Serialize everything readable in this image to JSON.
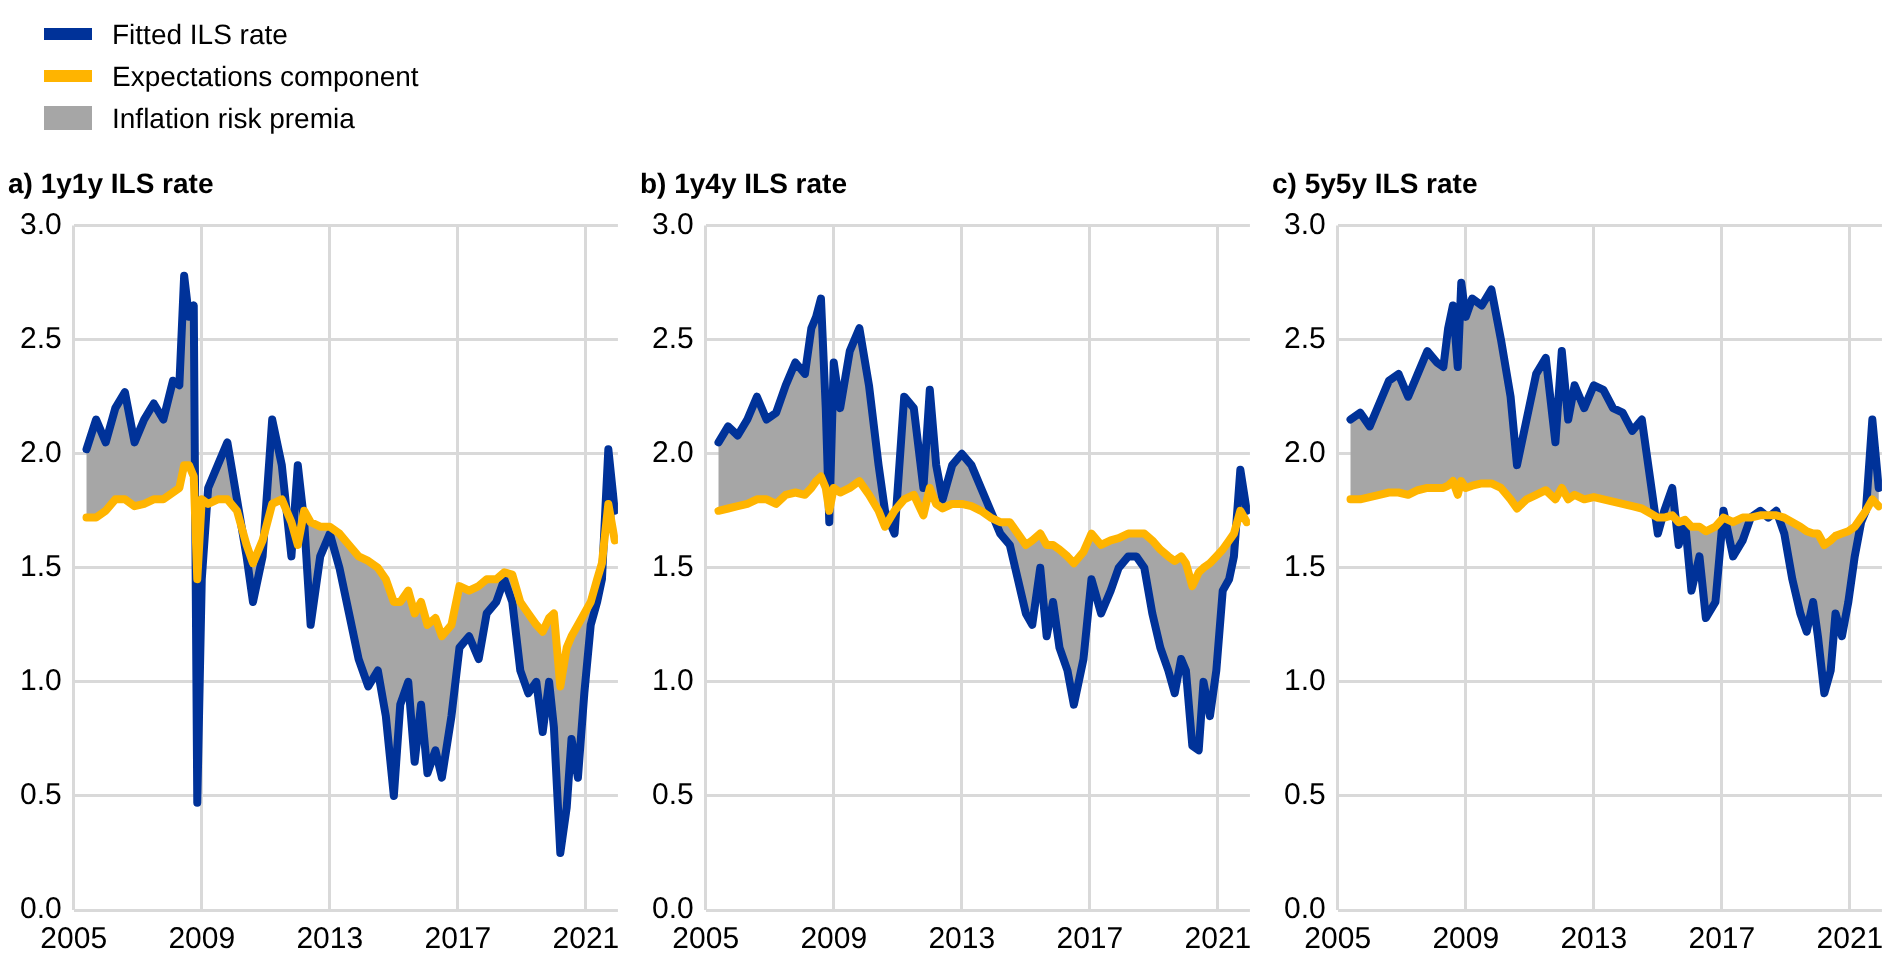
{
  "chart_data": [
    {
      "type": "line",
      "title": "a) 1y1y ILS rate",
      "legend": "top left",
      "annotations": [
        "Inflation risk premia"
      ],
      "grid": true,
      "xlim": [
        2005,
        2022
      ],
      "xticks": [
        2005,
        2009,
        2013,
        2017,
        2021
      ],
      "ylim": [
        0,
        3
      ],
      "yticks": [
        {
          "value": 0,
          "label": "0.0"
        },
        {
          "value": 0.5,
          "label": "0.5"
        },
        {
          "value": 1,
          "label": "1.0"
        },
        {
          "value": 1.5,
          "label": "1.5"
        },
        {
          "value": 2,
          "label": "2.0"
        },
        {
          "value": 2.5,
          "label": "2.5"
        },
        {
          "value": 3,
          "label": "3.0"
        }
      ],
      "x": [
        2005.4,
        2005.7,
        2006.0,
        2006.3,
        2006.6,
        2006.9,
        2007.2,
        2007.5,
        2007.8,
        2008.1,
        2008.3,
        2008.45,
        2008.6,
        2008.75,
        2008.86,
        2009.0,
        2009.2,
        2009.5,
        2009.8,
        2010.1,
        2010.4,
        2010.6,
        2010.9,
        2011.2,
        2011.5,
        2011.8,
        2012.0,
        2012.2,
        2012.4,
        2012.7,
        2013.0,
        2013.3,
        2013.6,
        2013.9,
        2014.2,
        2014.5,
        2014.75,
        2015.0,
        2015.2,
        2015.45,
        2015.65,
        2015.85,
        2016.05,
        2016.3,
        2016.5,
        2016.8,
        2017.05,
        2017.35,
        2017.65,
        2017.9,
        2018.2,
        2018.45,
        2018.7,
        2018.95,
        2019.2,
        2019.45,
        2019.65,
        2019.85,
        2020.0,
        2020.2,
        2020.4,
        2020.55,
        2020.75,
        2020.95,
        2021.15,
        2021.35,
        2021.5,
        2021.7,
        2021.9
      ],
      "series": [
        {
          "name": "Fitted ILS rate",
          "type": "line",
          "color": "#003299",
          "values": [
            2.02,
            2.15,
            2.05,
            2.2,
            2.27,
            2.05,
            2.15,
            2.22,
            2.15,
            2.32,
            2.3,
            2.78,
            2.6,
            2.65,
            0.47,
            1.45,
            1.85,
            1.95,
            2.05,
            1.8,
            1.55,
            1.35,
            1.55,
            2.15,
            1.95,
            1.55,
            1.95,
            1.7,
            1.25,
            1.55,
            1.65,
            1.5,
            1.3,
            1.1,
            0.98,
            1.05,
            0.85,
            0.5,
            0.9,
            1.0,
            0.65,
            0.9,
            0.6,
            0.7,
            0.58,
            0.85,
            1.15,
            1.2,
            1.1,
            1.3,
            1.35,
            1.45,
            1.35,
            1.05,
            0.95,
            1.0,
            0.78,
            1.0,
            0.8,
            0.25,
            0.45,
            0.75,
            0.58,
            0.95,
            1.25,
            1.35,
            1.45,
            2.02,
            1.75
          ],
          "lower": [
            1.72,
            1.72,
            1.75,
            1.8,
            1.8,
            1.77,
            1.78,
            1.8,
            1.8,
            1.83,
            1.85,
            1.95,
            1.95,
            1.9,
            1.45,
            1.8,
            1.78,
            1.8,
            1.8,
            1.75,
            1.6,
            1.52,
            1.62,
            1.78,
            1.8,
            1.7,
            1.6,
            1.75,
            1.7,
            1.68,
            1.68,
            1.65,
            1.6,
            1.55,
            1.53,
            1.5,
            1.45,
            1.35,
            1.35,
            1.4,
            1.3,
            1.35,
            1.25,
            1.28,
            1.2,
            1.25,
            1.42,
            1.4,
            1.42,
            1.45,
            1.45,
            1.48,
            1.47,
            1.35,
            1.3,
            1.25,
            1.22,
            1.28,
            1.3,
            0.98,
            1.15,
            1.2,
            1.25,
            1.3,
            1.35,
            1.45,
            1.52,
            1.78,
            1.62
          ],
          "upper": [
            2.02,
            2.15,
            2.05,
            2.2,
            2.27,
            2.05,
            2.15,
            2.22,
            2.15,
            2.32,
            2.3,
            2.78,
            2.6,
            2.65,
            0.47,
            1.45,
            1.85,
            1.95,
            2.05,
            1.8,
            1.55,
            1.35,
            1.55,
            2.15,
            1.95,
            1.55,
            1.95,
            1.7,
            1.25,
            1.55,
            1.65,
            1.5,
            1.3,
            1.1,
            0.98,
            1.05,
            0.85,
            0.5,
            0.9,
            1.0,
            0.65,
            0.9,
            0.6,
            0.7,
            0.58,
            0.85,
            1.15,
            1.2,
            1.1,
            1.3,
            1.35,
            1.45,
            1.35,
            1.05,
            0.95,
            1.0,
            0.78,
            1.0,
            0.8,
            0.25,
            0.45,
            0.75,
            0.58,
            0.95,
            1.25,
            1.35,
            1.45,
            2.02,
            1.75
          ]
        },
        {
          "name": "Expectations component",
          "type": "line",
          "color": "#ffb400",
          "values": [
            1.72,
            1.72,
            1.75,
            1.8,
            1.8,
            1.77,
            1.78,
            1.8,
            1.8,
            1.83,
            1.85,
            1.95,
            1.95,
            1.9,
            1.45,
            1.8,
            1.78,
            1.8,
            1.8,
            1.75,
            1.6,
            1.52,
            1.62,
            1.78,
            1.8,
            1.7,
            1.6,
            1.75,
            1.7,
            1.68,
            1.68,
            1.65,
            1.6,
            1.55,
            1.53,
            1.5,
            1.45,
            1.35,
            1.35,
            1.4,
            1.3,
            1.35,
            1.25,
            1.28,
            1.2,
            1.25,
            1.42,
            1.4,
            1.42,
            1.45,
            1.45,
            1.48,
            1.47,
            1.35,
            1.3,
            1.25,
            1.22,
            1.28,
            1.3,
            0.98,
            1.15,
            1.2,
            1.25,
            1.3,
            1.35,
            1.45,
            1.52,
            1.78,
            1.62
          ]
        }
      ]
    },
    {
      "type": "line",
      "title": "b) 1y4y ILS rate",
      "grid": true,
      "xlim": [
        2005,
        2022
      ],
      "xticks": [
        2005,
        2009,
        2013,
        2017,
        2021
      ],
      "ylim": [
        0,
        3
      ],
      "yticks": [
        {
          "value": 0,
          "label": "0.0"
        },
        {
          "value": 0.5,
          "label": "0.5"
        },
        {
          "value": 1,
          "label": "1.0"
        },
        {
          "value": 1.5,
          "label": "1.5"
        },
        {
          "value": 2,
          "label": "2.0"
        },
        {
          "value": 2.5,
          "label": "2.5"
        },
        {
          "value": 3,
          "label": "3.0"
        }
      ],
      "x": [
        2005.4,
        2005.7,
        2006.0,
        2006.3,
        2006.6,
        2006.9,
        2007.2,
        2007.5,
        2007.8,
        2008.1,
        2008.3,
        2008.45,
        2008.6,
        2008.75,
        2008.86,
        2009.0,
        2009.2,
        2009.5,
        2009.8,
        2010.1,
        2010.4,
        2010.6,
        2010.9,
        2011.2,
        2011.5,
        2011.8,
        2012.0,
        2012.2,
        2012.4,
        2012.7,
        2013.0,
        2013.3,
        2013.6,
        2013.9,
        2014.2,
        2014.5,
        2014.75,
        2015.0,
        2015.2,
        2015.45,
        2015.65,
        2015.85,
        2016.05,
        2016.3,
        2016.5,
        2016.8,
        2017.05,
        2017.35,
        2017.65,
        2017.9,
        2018.2,
        2018.45,
        2018.7,
        2018.95,
        2019.2,
        2019.45,
        2019.65,
        2019.85,
        2020.0,
        2020.2,
        2020.4,
        2020.55,
        2020.75,
        2020.95,
        2021.15,
        2021.35,
        2021.5,
        2021.7,
        2021.9
      ],
      "series": [
        {
          "type": "line",
          "color": "#003299",
          "values": [
            2.05,
            2.12,
            2.08,
            2.15,
            2.25,
            2.15,
            2.18,
            2.3,
            2.4,
            2.35,
            2.55,
            2.6,
            2.68,
            2.2,
            1.7,
            2.4,
            2.2,
            2.45,
            2.55,
            2.3,
            1.95,
            1.75,
            1.65,
            2.25,
            2.2,
            1.85,
            2.28,
            1.95,
            1.8,
            1.95,
            2.0,
            1.95,
            1.85,
            1.75,
            1.65,
            1.6,
            1.45,
            1.3,
            1.25,
            1.5,
            1.2,
            1.35,
            1.15,
            1.05,
            0.9,
            1.1,
            1.45,
            1.3,
            1.4,
            1.5,
            1.55,
            1.55,
            1.5,
            1.3,
            1.15,
            1.05,
            0.95,
            1.1,
            1.05,
            0.72,
            0.7,
            1.0,
            0.85,
            1.05,
            1.4,
            1.45,
            1.55,
            1.93,
            1.75
          ],
          "lower": [
            1.75,
            1.76,
            1.77,
            1.78,
            1.8,
            1.8,
            1.78,
            1.82,
            1.83,
            1.82,
            1.85,
            1.88,
            1.9,
            1.85,
            1.75,
            1.85,
            1.83,
            1.85,
            1.88,
            1.82,
            1.75,
            1.68,
            1.75,
            1.8,
            1.82,
            1.73,
            1.85,
            1.78,
            1.76,
            1.78,
            1.78,
            1.77,
            1.75,
            1.72,
            1.7,
            1.7,
            1.65,
            1.6,
            1.62,
            1.65,
            1.6,
            1.6,
            1.58,
            1.55,
            1.52,
            1.57,
            1.65,
            1.6,
            1.62,
            1.63,
            1.65,
            1.65,
            1.65,
            1.62,
            1.58,
            1.55,
            1.53,
            1.55,
            1.52,
            1.42,
            1.48,
            1.5,
            1.52,
            1.55,
            1.58,
            1.62,
            1.65,
            1.75,
            1.7
          ],
          "upper": [
            2.05,
            2.12,
            2.08,
            2.15,
            2.25,
            2.15,
            2.18,
            2.3,
            2.4,
            2.35,
            2.55,
            2.6,
            2.68,
            2.2,
            1.7,
            2.4,
            2.2,
            2.45,
            2.55,
            2.3,
            1.95,
            1.75,
            1.65,
            2.25,
            2.2,
            1.85,
            2.28,
            1.95,
            1.8,
            1.95,
            2.0,
            1.95,
            1.85,
            1.75,
            1.65,
            1.6,
            1.45,
            1.3,
            1.25,
            1.5,
            1.2,
            1.35,
            1.15,
            1.05,
            0.9,
            1.1,
            1.45,
            1.3,
            1.4,
            1.5,
            1.55,
            1.55,
            1.5,
            1.3,
            1.15,
            1.05,
            0.95,
            1.1,
            1.05,
            0.72,
            0.7,
            1.0,
            0.85,
            1.05,
            1.4,
            1.45,
            1.55,
            1.93,
            1.75
          ]
        },
        {
          "type": "line",
          "color": "#ffb400",
          "values": [
            1.75,
            1.76,
            1.77,
            1.78,
            1.8,
            1.8,
            1.78,
            1.82,
            1.83,
            1.82,
            1.85,
            1.88,
            1.9,
            1.85,
            1.75,
            1.85,
            1.83,
            1.85,
            1.88,
            1.82,
            1.75,
            1.68,
            1.75,
            1.8,
            1.82,
            1.73,
            1.85,
            1.78,
            1.76,
            1.78,
            1.78,
            1.77,
            1.75,
            1.72,
            1.7,
            1.7,
            1.65,
            1.6,
            1.62,
            1.65,
            1.6,
            1.6,
            1.58,
            1.55,
            1.52,
            1.57,
            1.65,
            1.6,
            1.62,
            1.63,
            1.65,
            1.65,
            1.65,
            1.62,
            1.58,
            1.55,
            1.53,
            1.55,
            1.52,
            1.42,
            1.48,
            1.5,
            1.52,
            1.55,
            1.58,
            1.62,
            1.65,
            1.75,
            1.7
          ]
        }
      ]
    },
    {
      "type": "line",
      "title": "c) 5y5y ILS rate",
      "grid": true,
      "xlim": [
        2005,
        2022
      ],
      "xticks": [
        2005,
        2009,
        2013,
        2017,
        2021
      ],
      "ylim": [
        0,
        3
      ],
      "yticks": [
        {
          "value": 0,
          "label": "0.0"
        },
        {
          "value": 0.5,
          "label": "0.5"
        },
        {
          "value": 1,
          "label": "1.0"
        },
        {
          "value": 1.5,
          "label": "1.5"
        },
        {
          "value": 2,
          "label": "2.0"
        },
        {
          "value": 2.5,
          "label": "2.5"
        },
        {
          "value": 3,
          "label": "3.0"
        }
      ],
      "x": [
        2005.4,
        2005.7,
        2006.0,
        2006.3,
        2006.6,
        2006.9,
        2007.2,
        2007.5,
        2007.8,
        2008.1,
        2008.3,
        2008.45,
        2008.6,
        2008.75,
        2008.86,
        2009.0,
        2009.2,
        2009.5,
        2009.8,
        2010.1,
        2010.4,
        2010.6,
        2010.9,
        2011.2,
        2011.5,
        2011.8,
        2012.0,
        2012.2,
        2012.4,
        2012.7,
        2013.0,
        2013.3,
        2013.6,
        2013.9,
        2014.2,
        2014.5,
        2014.75,
        2015.0,
        2015.2,
        2015.45,
        2015.65,
        2015.85,
        2016.05,
        2016.3,
        2016.5,
        2016.8,
        2017.05,
        2017.35,
        2017.65,
        2017.9,
        2018.2,
        2018.45,
        2018.7,
        2018.95,
        2019.2,
        2019.45,
        2019.65,
        2019.85,
        2020.0,
        2020.2,
        2020.4,
        2020.55,
        2020.75,
        2020.95,
        2021.15,
        2021.35,
        2021.5,
        2021.7,
        2021.9
      ],
      "series": [
        {
          "type": "line",
          "color": "#003299",
          "values": [
            2.15,
            2.18,
            2.12,
            2.22,
            2.32,
            2.35,
            2.25,
            2.35,
            2.45,
            2.4,
            2.38,
            2.55,
            2.65,
            2.38,
            2.75,
            2.6,
            2.68,
            2.65,
            2.72,
            2.5,
            2.25,
            1.95,
            2.15,
            2.35,
            2.42,
            2.05,
            2.45,
            2.15,
            2.3,
            2.2,
            2.3,
            2.28,
            2.2,
            2.18,
            2.1,
            2.15,
            1.9,
            1.65,
            1.75,
            1.85,
            1.6,
            1.7,
            1.4,
            1.55,
            1.28,
            1.35,
            1.75,
            1.55,
            1.62,
            1.72,
            1.75,
            1.72,
            1.75,
            1.65,
            1.45,
            1.3,
            1.22,
            1.35,
            1.2,
            0.95,
            1.05,
            1.3,
            1.2,
            1.35,
            1.55,
            1.7,
            1.75,
            2.15,
            1.85
          ],
          "lower": [
            1.8,
            1.8,
            1.81,
            1.82,
            1.83,
            1.83,
            1.82,
            1.84,
            1.85,
            1.85,
            1.85,
            1.86,
            1.88,
            1.82,
            1.88,
            1.85,
            1.86,
            1.87,
            1.87,
            1.85,
            1.8,
            1.76,
            1.8,
            1.82,
            1.84,
            1.8,
            1.85,
            1.8,
            1.82,
            1.8,
            1.81,
            1.8,
            1.79,
            1.78,
            1.77,
            1.76,
            1.74,
            1.72,
            1.72,
            1.73,
            1.7,
            1.71,
            1.68,
            1.68,
            1.66,
            1.68,
            1.72,
            1.7,
            1.72,
            1.72,
            1.73,
            1.73,
            1.73,
            1.72,
            1.7,
            1.68,
            1.66,
            1.65,
            1.65,
            1.6,
            1.62,
            1.64,
            1.65,
            1.66,
            1.68,
            1.72,
            1.75,
            1.8,
            1.77
          ],
          "upper": [
            2.15,
            2.18,
            2.12,
            2.22,
            2.32,
            2.35,
            2.25,
            2.35,
            2.45,
            2.4,
            2.38,
            2.55,
            2.65,
            2.38,
            2.75,
            2.6,
            2.68,
            2.65,
            2.72,
            2.5,
            2.25,
            1.95,
            2.15,
            2.35,
            2.42,
            2.05,
            2.45,
            2.15,
            2.3,
            2.2,
            2.3,
            2.28,
            2.2,
            2.18,
            2.1,
            2.15,
            1.9,
            1.65,
            1.75,
            1.85,
            1.6,
            1.7,
            1.4,
            1.55,
            1.28,
            1.35,
            1.75,
            1.55,
            1.62,
            1.72,
            1.75,
            1.72,
            1.75,
            1.65,
            1.45,
            1.3,
            1.22,
            1.35,
            1.2,
            0.95,
            1.05,
            1.3,
            1.2,
            1.35,
            1.55,
            1.7,
            1.75,
            2.15,
            1.85
          ]
        },
        {
          "type": "line",
          "color": "#ffb400",
          "values": [
            1.8,
            1.8,
            1.81,
            1.82,
            1.83,
            1.83,
            1.82,
            1.84,
            1.85,
            1.85,
            1.85,
            1.86,
            1.88,
            1.82,
            1.88,
            1.85,
            1.86,
            1.87,
            1.87,
            1.85,
            1.8,
            1.76,
            1.8,
            1.82,
            1.84,
            1.8,
            1.85,
            1.8,
            1.82,
            1.8,
            1.81,
            1.8,
            1.79,
            1.78,
            1.77,
            1.76,
            1.74,
            1.72,
            1.72,
            1.73,
            1.7,
            1.71,
            1.68,
            1.68,
            1.66,
            1.68,
            1.72,
            1.7,
            1.72,
            1.72,
            1.73,
            1.73,
            1.73,
            1.72,
            1.7,
            1.68,
            1.66,
            1.65,
            1.65,
            1.6,
            1.62,
            1.64,
            1.65,
            1.66,
            1.68,
            1.72,
            1.75,
            1.8,
            1.77
          ]
        }
      ]
    }
  ]
}
